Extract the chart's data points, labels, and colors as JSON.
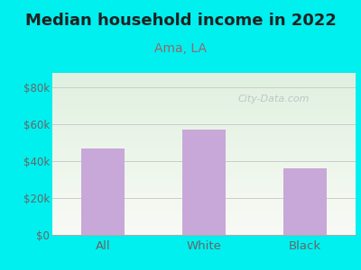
{
  "title": "Median household income in 2022",
  "subtitle": "Ama, LA",
  "categories": [
    "All",
    "White",
    "Black"
  ],
  "values": [
    47000,
    57000,
    36000
  ],
  "bar_color": "#c8a8d8",
  "title_fontsize": 13,
  "subtitle_fontsize": 10,
  "subtitle_color": "#996666",
  "tick_label_color": "#666666",
  "yticks": [
    0,
    20000,
    40000,
    60000,
    80000
  ],
  "ytick_labels": [
    "$0",
    "$20k",
    "$40k",
    "$60k",
    "$80k"
  ],
  "ylim": [
    0,
    88000
  ],
  "bg_outer": "#00efef",
  "bg_plot_top_color": "#dff0df",
  "bg_plot_bottom_color": "#f5f8f2",
  "grid_color": "#cccccc",
  "watermark": "City-Data.com"
}
